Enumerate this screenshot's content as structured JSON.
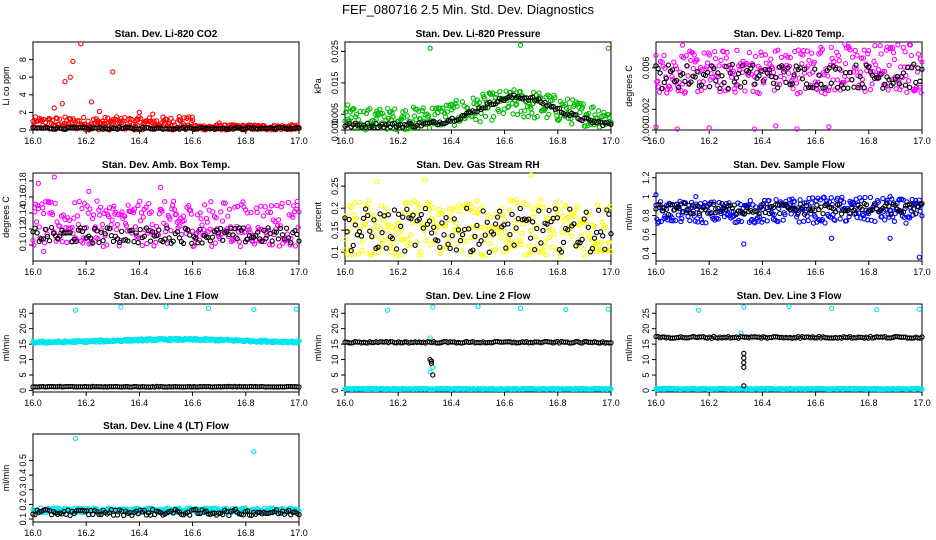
{
  "figure": {
    "title": "FEF_080716  2.5 Min. Std. Dev. Diagnostics",
    "overlay_color": "#000000"
  },
  "chart_data": [
    {
      "type": "scatter",
      "title": "Stan. Dev. Li-820 CO2",
      "ylabel": "Li co ppm",
      "xlim": [
        16.0,
        17.0
      ],
      "ylim": [
        0,
        10
      ],
      "yticks": [
        0,
        2,
        4,
        6,
        8
      ],
      "xticks": [
        16.0,
        16.2,
        16.4,
        16.6,
        16.8,
        17.0
      ],
      "color": "#ff0000",
      "series": [
        {
          "points": [
            [
              16.18,
              9.8
            ],
            [
              16.15,
              7.8
            ],
            [
              16.14,
              6.0
            ],
            [
              16.12,
              5.5
            ],
            [
              16.3,
              6.6
            ],
            [
              16.08,
              2.5
            ],
            [
              16.11,
              3.0
            ],
            [
              16.22,
              3.2
            ],
            [
              16.25,
              2.1
            ],
            [
              16.4,
              2.0
            ],
            [
              16.45,
              1.8
            ],
            [
              16.55,
              1.5
            ],
            [
              16.6,
              1.1
            ],
            [
              16.7,
              0.8
            ]
          ]
        }
      ],
      "overlay": {
        "level": 0.2,
        "band_low": 0.0,
        "band_high": 0.5
      },
      "base": {
        "low": 0.0,
        "high": 1.5,
        "taper_x": 16.6,
        "tail_high": 0.6
      }
    },
    {
      "type": "scatter",
      "title": "Stan. Dev. Li-820 Pressure",
      "ylabel": "kPa",
      "xlim": [
        16.0,
        17.0
      ],
      "ylim": [
        0,
        0.028
      ],
      "yticks": [
        0.0,
        0.005,
        0.015,
        0.025
      ],
      "ytick_labels": [
        "0.000",
        "0.005",
        "0.015",
        "0.025"
      ],
      "xticks": [
        16.0,
        16.2,
        16.4,
        16.6,
        16.8,
        17.0
      ],
      "color": "#00bb00",
      "series": [
        {
          "points": [
            [
              16.32,
              0.026
            ],
            [
              16.66,
              0.027
            ],
            [
              16.99,
              0.026
            ],
            [
              16.01,
              0.008
            ],
            [
              16.12,
              0.006
            ]
          ]
        }
      ],
      "overlay": {
        "hump_peak": 0.009,
        "hump_center": 16.65,
        "hump_width": 0.14,
        "base": 0.0015
      },
      "base": {
        "low": 0.0,
        "high": 0.007,
        "hump_add": 0.006,
        "hump_center": 16.65,
        "hump_width": 0.17
      }
    },
    {
      "type": "scatter",
      "title": "Stan. Dev. Li-820 Temp.",
      "ylabel": "degrees C",
      "xlim": [
        16.0,
        17.0
      ],
      "ylim": [
        0,
        0.0085
      ],
      "yticks": [
        0.0,
        0.002,
        0.006
      ],
      "ytick_labels": [
        "0.000",
        "0.002",
        "0.006"
      ],
      "xticks": [
        16.0,
        16.2,
        16.4,
        16.6,
        16.8,
        17.0
      ],
      "color": "#ff00ff",
      "series": [
        {
          "points": [
            [
              16.0,
              0.0003
            ],
            [
              16.08,
              0.0001
            ],
            [
              16.2,
              0.0002
            ],
            [
              16.37,
              0.0001
            ],
            [
              16.45,
              0.0004
            ],
            [
              16.53,
              0.0001
            ],
            [
              16.65,
              0.0003
            ],
            [
              16.1,
              0.0082
            ],
            [
              16.62,
              0.008
            ],
            [
              16.71,
              0.0083
            ]
          ]
        }
      ],
      "overlay": {
        "level": 0.0052,
        "spread": 0.0012
      },
      "base": {
        "low": 0.0035,
        "high": 0.0075,
        "rise": 0.001
      }
    },
    {
      "type": "scatter",
      "title": "Stan. Dev. Amb. Box Temp.",
      "ylabel": "degrees C",
      "xlim": [
        16.0,
        17.0
      ],
      "ylim": [
        0.08,
        0.19
      ],
      "yticks": [
        0.1,
        0.12,
        0.14,
        0.16,
        0.18
      ],
      "xticks": [
        16.0,
        16.2,
        16.4,
        16.6,
        16.8,
        17.0
      ],
      "color": "#ff00ff",
      "series": [
        {
          "points": [
            [
              16.08,
              0.185
            ],
            [
              16.02,
              0.177
            ],
            [
              16.21,
              0.167
            ],
            [
              16.04,
              0.092
            ],
            [
              16.48,
              0.172
            ]
          ]
        }
      ],
      "overlay": {
        "level": 0.112,
        "spread": 0.01
      },
      "base": {
        "low": 0.098,
        "high": 0.155
      }
    },
    {
      "type": "scatter",
      "title": "Stan. Dev. Gas Stream RH",
      "ylabel": "percent",
      "xlim": [
        16.0,
        17.0
      ],
      "ylim": [
        0.08,
        0.28
      ],
      "yticks": [
        0.1,
        0.15,
        0.2,
        0.25
      ],
      "xticks": [
        16.0,
        16.2,
        16.4,
        16.6,
        16.8,
        17.0
      ],
      "color": "#ffff00",
      "series": [
        {
          "points": [
            [
              16.7,
              0.275
            ],
            [
              16.3,
              0.265
            ],
            [
              16.12,
              0.26
            ]
          ]
        }
      ],
      "overlay": {
        "level": 0.15,
        "spread": 0.05
      },
      "base": {
        "low": 0.09,
        "high": 0.22
      }
    },
    {
      "type": "scatter",
      "title": "Stan. Dev. Sample Flow",
      "ylabel": "ml/min",
      "xlim": [
        16.0,
        17.0
      ],
      "ylim": [
        0.32,
        1.25
      ],
      "yticks": [
        0.4,
        0.6,
        0.8,
        1.0,
        1.2
      ],
      "xticks": [
        16.0,
        16.2,
        16.4,
        16.6,
        16.8,
        17.0
      ],
      "color": "#0000ff",
      "series": [
        {
          "points": [
            [
              16.0,
              1.02
            ],
            [
              16.15,
              1.0
            ],
            [
              16.33,
              0.5
            ],
            [
              16.52,
              0.95
            ],
            [
              16.66,
              0.56
            ],
            [
              16.88,
              0.56
            ],
            [
              16.99,
              0.36
            ],
            [
              16.88,
              1.0
            ]
          ]
        }
      ],
      "overlay": {
        "level": 0.87,
        "spread": 0.06
      },
      "base": {
        "low": 0.72,
        "high": 0.95,
        "hump_add": 0.05,
        "hump_center": 16.7,
        "hump_width": 0.2
      }
    },
    {
      "type": "scatter",
      "title": "Stan. Dev. Line 1 Flow",
      "ylabel": "ml/min",
      "xlim": [
        16.0,
        17.0
      ],
      "ylim": [
        -0.5,
        28
      ],
      "yticks": [
        0,
        5,
        10,
        15,
        20,
        25
      ],
      "xticks": [
        16.0,
        16.2,
        16.4,
        16.6,
        16.8,
        17.0
      ],
      "color": "#00e5ee",
      "series": [
        {
          "points": [
            [
              16.16,
              26.0
            ],
            [
              16.33,
              27.0
            ],
            [
              16.5,
              27.2
            ],
            [
              16.66,
              26.6
            ],
            [
              16.83,
              26.2
            ],
            [
              16.99,
              26.3
            ]
          ]
        }
      ],
      "overlay": {
        "level": 1.2,
        "spread": 0.1
      },
      "base": {
        "level": 15.5,
        "spread": 0.35,
        "hump_add": 1.0,
        "hump_center": 16.55,
        "hump_width": 0.25
      }
    },
    {
      "type": "scatter",
      "title": "Stan. Dev. Line 2 Flow",
      "ylabel": "ml/min",
      "xlim": [
        16.0,
        17.0
      ],
      "ylim": [
        -0.5,
        28
      ],
      "yticks": [
        0,
        5,
        10,
        15,
        20,
        25
      ],
      "xticks": [
        16.0,
        16.2,
        16.4,
        16.6,
        16.8,
        17.0
      ],
      "color": "#00e5ee",
      "series": [
        {
          "points": [
            [
              16.16,
              26.0
            ],
            [
              16.33,
              27.0
            ],
            [
              16.5,
              27.2
            ],
            [
              16.66,
              26.6
            ],
            [
              16.83,
              26.2
            ],
            [
              16.99,
              26.3
            ],
            [
              16.32,
              17.0
            ],
            [
              16.32,
              6.0
            ],
            [
              16.33,
              7.5
            ]
          ]
        }
      ],
      "overlay": {
        "level": 15.6,
        "spread": 0.25,
        "dip_points": [
          [
            16.325,
            9.5
          ],
          [
            16.325,
            8.8
          ],
          [
            16.33,
            5.0
          ],
          [
            16.32,
            10.0
          ]
        ]
      },
      "base": {
        "level": 0.5,
        "spread": 0.15
      }
    },
    {
      "type": "scatter",
      "title": "Stan. Dev. Line 3 Flow",
      "ylabel": "ml/min",
      "xlim": [
        16.0,
        17.0
      ],
      "ylim": [
        -0.5,
        28
      ],
      "yticks": [
        0,
        5,
        10,
        15,
        20,
        25
      ],
      "xticks": [
        16.0,
        16.2,
        16.4,
        16.6,
        16.8,
        17.0
      ],
      "color": "#00e5ee",
      "series": [
        {
          "points": [
            [
              16.16,
              26.0
            ],
            [
              16.33,
              27.0
            ],
            [
              16.5,
              27.2
            ],
            [
              16.66,
              26.6
            ],
            [
              16.83,
              26.2
            ],
            [
              16.99,
              26.3
            ],
            [
              16.32,
              18.6
            ]
          ]
        }
      ],
      "overlay": {
        "level": 17.2,
        "spread": 0.3,
        "dip_points": [
          [
            16.33,
            12.0
          ],
          [
            16.33,
            10.5
          ],
          [
            16.33,
            9.0
          ],
          [
            16.33,
            7.5
          ],
          [
            16.33,
            1.5
          ]
        ]
      },
      "base": {
        "level": 0.5,
        "spread": 0.15
      }
    },
    {
      "type": "scatter",
      "title": "Stan. Dev. Line 4 (LT) Flow",
      "ylabel": "ml/min",
      "xlim": [
        16.0,
        17.0
      ],
      "ylim": [
        0.08,
        0.68
      ],
      "yticks": [
        0.1,
        0.2,
        0.3,
        0.4,
        0.5
      ],
      "xticks": [
        16.0,
        16.2,
        16.4,
        16.6,
        16.8,
        17.0
      ],
      "color": "#00e5ee",
      "series": [
        {
          "points": [
            [
              16.16,
              0.65
            ],
            [
              16.83,
              0.56
            ],
            [
              16.5,
              0.17
            ]
          ]
        }
      ],
      "overlay": {
        "level": 0.145,
        "spread": 0.02
      },
      "base": {
        "level": 0.16,
        "spread": 0.015
      }
    }
  ]
}
